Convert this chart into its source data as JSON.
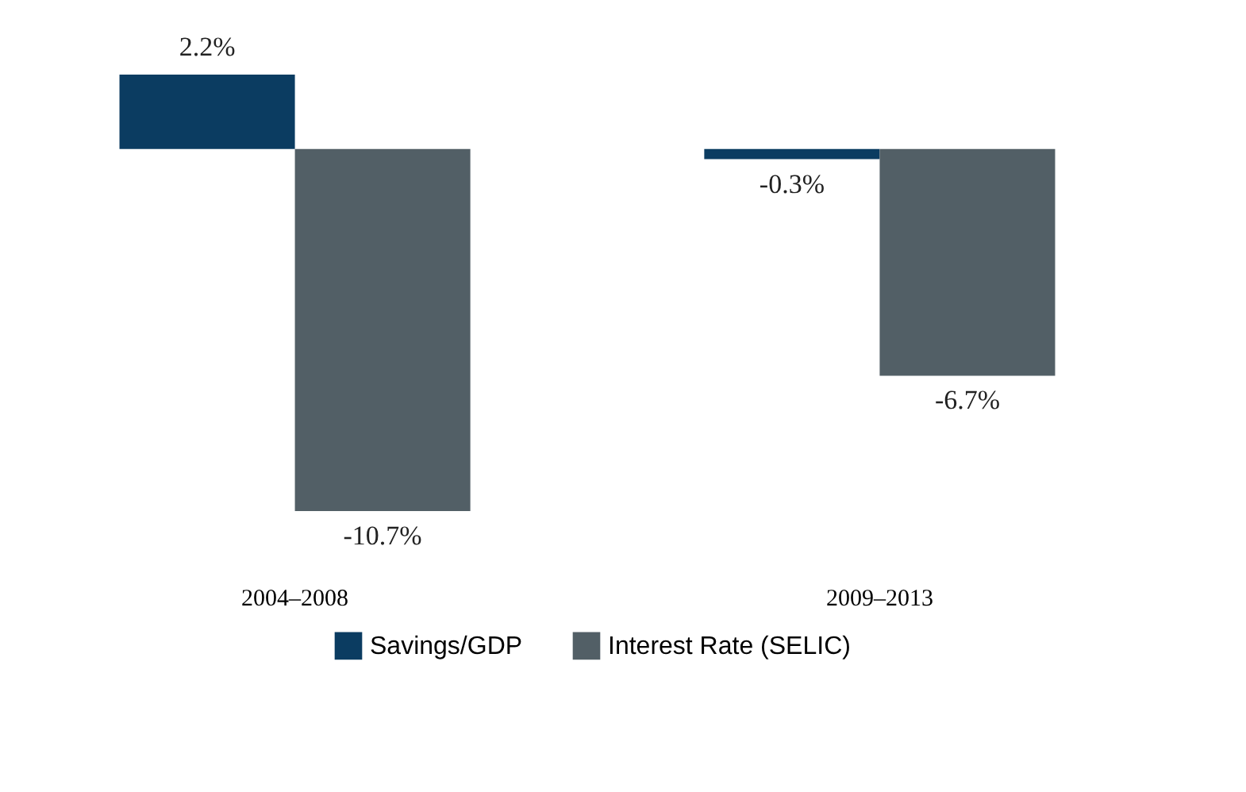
{
  "chart_data": {
    "type": "bar",
    "categories": [
      "2004–2008",
      "2009–2013"
    ],
    "series": [
      {
        "name": "Savings/GDP",
        "color": "#0b3c61",
        "values": [
          2.2,
          -0.3
        ],
        "value_labels": [
          "2.2%",
          "-0.3%"
        ]
      },
      {
        "name": "Interest Rate (SELIC)",
        "color": "#525f66",
        "values": [
          -10.7,
          -6.7
        ],
        "value_labels": [
          "-10.7%",
          "-6.7%"
        ]
      }
    ],
    "legend": "bottom",
    "grid": false
  }
}
